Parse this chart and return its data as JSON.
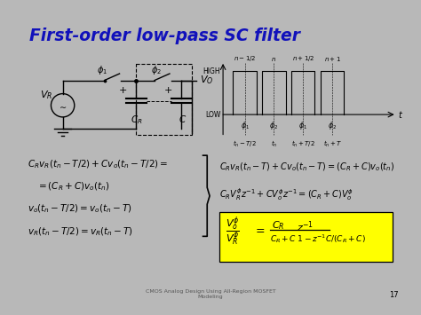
{
  "title": "First-order low-pass SC filter",
  "title_color": "#1111BB",
  "bg_color": "#FFFDE8",
  "slide_bg": "#B8B8B8",
  "content_bg": "#FFFFF0",
  "footer_text": "CMOS Analog Design Using All-Region MOSFET\nModeling",
  "page_number": "17",
  "box_bg": "#FFFF00",
  "left_eq1": "$C_Rv_R(t_n-T/2)+Cv_o(t_n-T/2)=$",
  "left_eq2": "$=(C_R+C)v_o(t_n)$",
  "left_eq3": "$v_o(t_n-T/2)=v_o(t_n-T)$",
  "left_eq4": "$v_R(t_n-T/2)=v_R(t_n-T)$",
  "right_eq1": "$C_Rv_R(t_n-T)+Cv_o(t_n-T)=(C_R+C)v_o(t_n)$",
  "right_eq2": "$C_RV_R^\\phi z^{-1}+CV_o^\\phi z^{-1}=(C_R+C)V_o^\\phi$",
  "box_lhs": "$\\dfrac{V_o^\\phi}{V_R^\\phi}=$",
  "box_rhs": "$\\dfrac{C_R}{C_R+C}\\dfrac{z^{-1}}{1-z^{-1}C/(C_R+C)}$"
}
